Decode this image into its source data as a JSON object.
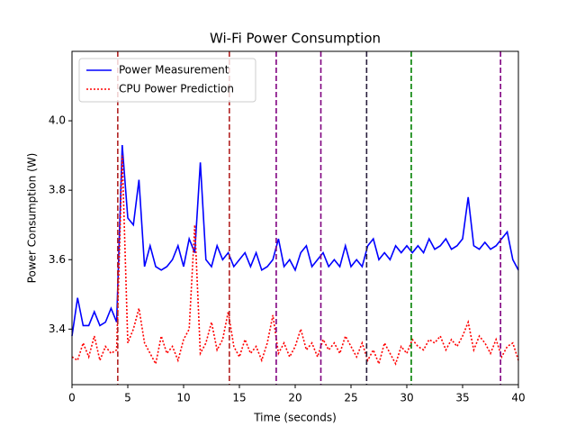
{
  "chart_data": {
    "type": "line",
    "title": "Wi-Fi Power Consumption",
    "x_label": "Time (seconds)",
    "y_label": "Power Consumption (W)",
    "x": [
      0,
      0.5,
      1,
      1.5,
      2,
      2.5,
      3,
      3.5,
      4,
      4.5,
      5,
      5.5,
      6,
      6.5,
      7,
      7.5,
      8,
      8.5,
      9,
      9.5,
      10,
      10.5,
      11,
      11.5,
      12,
      12.5,
      13,
      13.5,
      14,
      14.5,
      15,
      15.5,
      16,
      16.5,
      17,
      17.5,
      18,
      18.5,
      19,
      19.5,
      20,
      20.5,
      21,
      21.5,
      22,
      22.5,
      23,
      23.5,
      24,
      24.5,
      25,
      25.5,
      26,
      26.5,
      27,
      27.5,
      28,
      28.5,
      29,
      29.5,
      30,
      30.5,
      31,
      31.5,
      32,
      32.5,
      33,
      33.5,
      34,
      34.5,
      35,
      35.5,
      36,
      36.5,
      37,
      37.5,
      38,
      38.5,
      39,
      39.5,
      40
    ],
    "series": [
      {
        "name": "Power Measurement",
        "color": "#0000ff",
        "dash": "solid",
        "values": [
          3.38,
          3.49,
          3.41,
          3.41,
          3.45,
          3.41,
          3.42,
          3.46,
          3.42,
          3.93,
          3.72,
          3.7,
          3.83,
          3.58,
          3.64,
          3.58,
          3.57,
          3.58,
          3.6,
          3.64,
          3.58,
          3.66,
          3.62,
          3.88,
          3.6,
          3.58,
          3.64,
          3.6,
          3.62,
          3.58,
          3.6,
          3.62,
          3.58,
          3.62,
          3.57,
          3.58,
          3.6,
          3.66,
          3.58,
          3.6,
          3.57,
          3.62,
          3.64,
          3.58,
          3.6,
          3.62,
          3.58,
          3.6,
          3.58,
          3.64,
          3.58,
          3.6,
          3.58,
          3.64,
          3.66,
          3.6,
          3.62,
          3.6,
          3.64,
          3.62,
          3.64,
          3.62,
          3.64,
          3.62,
          3.66,
          3.63,
          3.64,
          3.66,
          3.63,
          3.64,
          3.66,
          3.78,
          3.64,
          3.63,
          3.65,
          3.63,
          3.64,
          3.66,
          3.68,
          3.6,
          3.57
        ]
      },
      {
        "name": "CPU Power Prediction",
        "color": "#ff0000",
        "dash": "dotted",
        "values": [
          3.32,
          3.31,
          3.36,
          3.32,
          3.38,
          3.31,
          3.35,
          3.33,
          3.34,
          3.9,
          3.36,
          3.4,
          3.46,
          3.36,
          3.33,
          3.3,
          3.38,
          3.33,
          3.35,
          3.31,
          3.37,
          3.4,
          3.7,
          3.33,
          3.36,
          3.42,
          3.34,
          3.37,
          3.45,
          3.35,
          3.32,
          3.37,
          3.33,
          3.35,
          3.31,
          3.36,
          3.44,
          3.33,
          3.36,
          3.32,
          3.35,
          3.4,
          3.34,
          3.36,
          3.32,
          3.37,
          3.34,
          3.36,
          3.33,
          3.38,
          3.35,
          3.32,
          3.36,
          3.31,
          3.34,
          3.3,
          3.36,
          3.33,
          3.3,
          3.35,
          3.33,
          3.37,
          3.35,
          3.34,
          3.37,
          3.36,
          3.38,
          3.34,
          3.37,
          3.35,
          3.38,
          3.42,
          3.34,
          3.38,
          3.36,
          3.33,
          3.37,
          3.32,
          3.35,
          3.36,
          3.31
        ]
      }
    ],
    "vlines": [
      {
        "x": 4.1,
        "color": "#b22222"
      },
      {
        "x": 14.1,
        "color": "#b22222"
      },
      {
        "x": 18.3,
        "color": "#800080"
      },
      {
        "x": 22.3,
        "color": "#800080"
      },
      {
        "x": 26.4,
        "color": "#2a1f3d"
      },
      {
        "x": 30.4,
        "color": "#008000"
      },
      {
        "x": 38.4,
        "color": "#800080"
      }
    ],
    "xlim": [
      0,
      40
    ],
    "xticks": [
      0,
      5,
      10,
      15,
      20,
      25,
      30,
      35,
      40
    ],
    "ylim": [
      3.24,
      4.2
    ],
    "yticks": [
      3.4,
      3.6,
      3.8,
      {
        "value": 4,
        "label": "4.0"
      }
    ],
    "legend": "upper left",
    "grid": false
  }
}
